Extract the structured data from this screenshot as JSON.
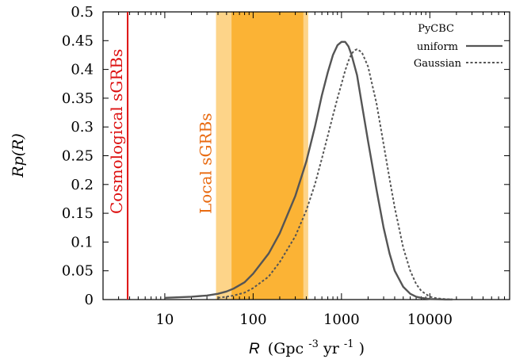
{
  "chart_data": {
    "type": "line",
    "xscale": "log",
    "xlim": [
      2,
      80000
    ],
    "ylim": [
      0,
      0.5
    ],
    "xticks": [
      10,
      100,
      1000,
      10000
    ],
    "xtick_labels": [
      "10",
      "100",
      "1000",
      "10000"
    ],
    "yticks": [
      0,
      0.05,
      0.1,
      0.15,
      0.2,
      0.25,
      0.3,
      0.35,
      0.4,
      0.45,
      0.5
    ],
    "ytick_labels": [
      "0",
      "0.05",
      "0.1",
      "0.15",
      "0.2",
      "0.25",
      "0.3",
      "0.35",
      "0.4",
      "0.45",
      "0.5"
    ],
    "xlabel_italic": "R",
    "xlabel_units": "(Gpc",
    "xlabel_exp1": "-3",
    "xlabel_mid": " yr",
    "xlabel_exp2": "-1",
    "xlabel_close": ")",
    "ylabel": "Rp(R)",
    "legend": {
      "title": "PyCBC",
      "placement": "top-right",
      "entries": [
        "uniform",
        "Gaussian"
      ]
    },
    "series": [
      {
        "name": "uniform",
        "style": "solid",
        "color": "#555555",
        "x": [
          10,
          20,
          30,
          40,
          50,
          60,
          80,
          100,
          150,
          200,
          300,
          400,
          500,
          600,
          700,
          800,
          900,
          1000,
          1100,
          1200,
          1300,
          1500,
          1700,
          2000,
          2500,
          3000,
          3500,
          4000,
          5000,
          6000,
          7000,
          8000,
          10000,
          12000,
          15000,
          18000
        ],
        "y": [
          0.003,
          0.005,
          0.007,
          0.01,
          0.014,
          0.019,
          0.03,
          0.045,
          0.08,
          0.115,
          0.18,
          0.24,
          0.3,
          0.355,
          0.395,
          0.425,
          0.442,
          0.448,
          0.448,
          0.44,
          0.425,
          0.39,
          0.34,
          0.275,
          0.19,
          0.125,
          0.08,
          0.05,
          0.022,
          0.01,
          0.005,
          0.003,
          0.001,
          0.0005,
          0.0002,
          0.0001
        ]
      },
      {
        "name": "Gaussian",
        "style": "dashed",
        "color": "#555555",
        "x": [
          40,
          50,
          60,
          80,
          100,
          150,
          200,
          300,
          400,
          500,
          600,
          700,
          800,
          900,
          1000,
          1100,
          1200,
          1300,
          1400,
          1500,
          1700,
          2000,
          2500,
          3000,
          3500,
          4000,
          5000,
          6000,
          7000,
          8000,
          10000,
          12000,
          15000,
          18000
        ],
        "y": [
          0.003,
          0.005,
          0.007,
          0.012,
          0.02,
          0.04,
          0.065,
          0.11,
          0.155,
          0.2,
          0.245,
          0.285,
          0.32,
          0.35,
          0.375,
          0.398,
          0.415,
          0.427,
          0.433,
          0.435,
          0.43,
          0.405,
          0.34,
          0.27,
          0.21,
          0.16,
          0.09,
          0.05,
          0.027,
          0.015,
          0.005,
          0.002,
          0.0008,
          0.0003
        ]
      }
    ],
    "annotations": [
      {
        "text": "Cosmological sGRBs",
        "color": "#dd1111",
        "line_x": 3.8
      },
      {
        "text": "Local sGRBs",
        "color": "#e86a10",
        "band_outer": [
          38,
          420
        ],
        "band_inner": [
          57,
          370
        ],
        "outer_color": "#fdd489",
        "inner_color": "#fbb335"
      }
    ]
  }
}
